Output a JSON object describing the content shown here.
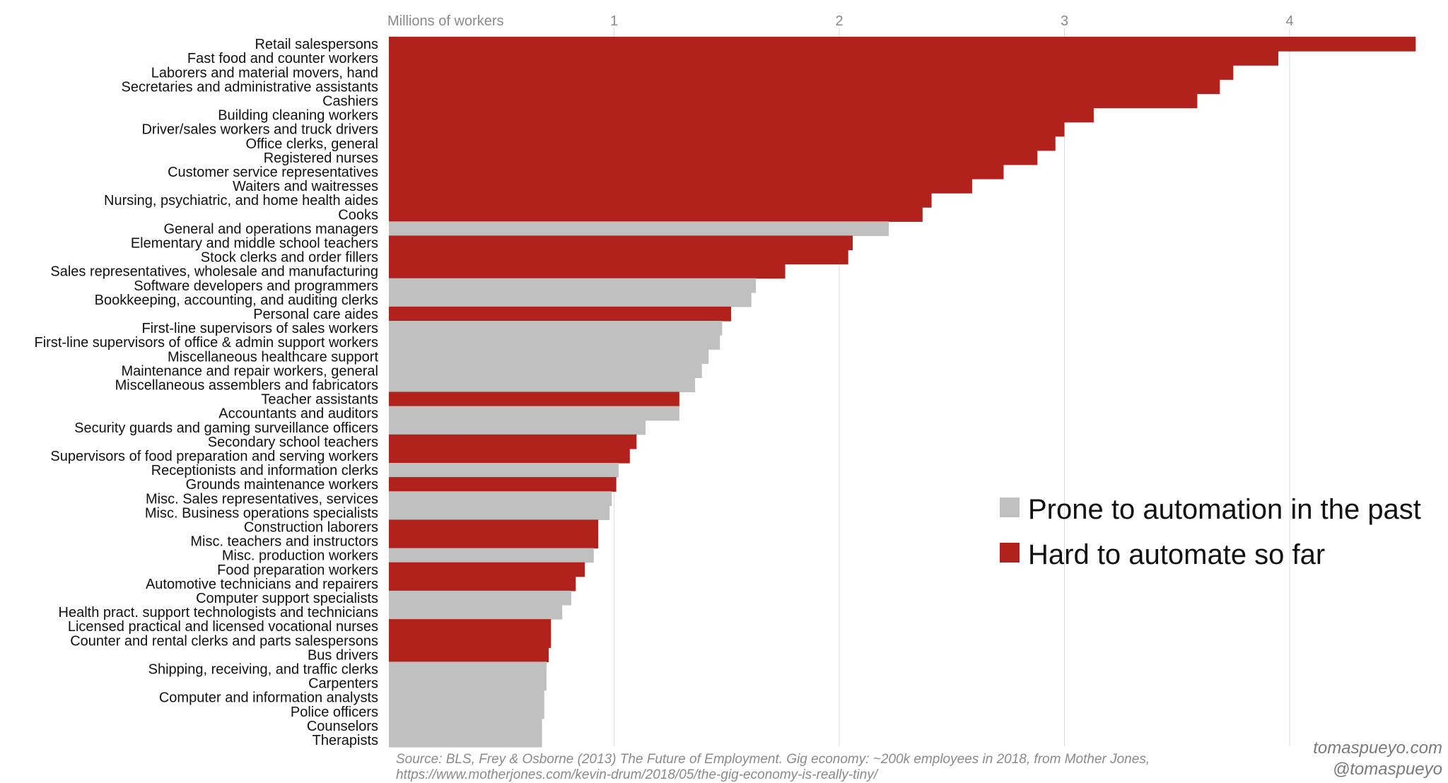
{
  "chart_data": {
    "type": "bar",
    "orientation": "horizontal",
    "xlabel": "Millions of workers",
    "xlim": [
      0,
      4.6
    ],
    "xticks": [
      1,
      2,
      3,
      4
    ],
    "grid": true,
    "legend_position": "right",
    "colors": {
      "prone": "#c0c0c0",
      "hard": "#b0221b"
    },
    "series": [
      {
        "key": "prone",
        "name": "Prone to automation in the past"
      },
      {
        "key": "hard",
        "name": "Hard to automate so far"
      }
    ],
    "bars": [
      {
        "label": "Retail salespersons",
        "value": 4.56,
        "group": "hard"
      },
      {
        "label": "Fast food and counter workers",
        "value": 3.95,
        "group": "hard"
      },
      {
        "label": "Laborers and material movers, hand",
        "value": 3.75,
        "group": "hard"
      },
      {
        "label": "Secretaries and administrative assistants",
        "value": 3.69,
        "group": "hard"
      },
      {
        "label": "Cashiers",
        "value": 3.59,
        "group": "hard"
      },
      {
        "label": "Building cleaning workers",
        "value": 3.13,
        "group": "hard"
      },
      {
        "label": "Driver/sales workers and truck drivers",
        "value": 3.0,
        "group": "hard"
      },
      {
        "label": "Office clerks, general",
        "value": 2.96,
        "group": "hard"
      },
      {
        "label": "Registered nurses",
        "value": 2.88,
        "group": "hard"
      },
      {
        "label": "Customer service representatives",
        "value": 2.73,
        "group": "hard"
      },
      {
        "label": "Waiters and waitresses",
        "value": 2.59,
        "group": "hard"
      },
      {
        "label": "Nursing, psychiatric, and home health aides",
        "value": 2.41,
        "group": "hard"
      },
      {
        "label": "Cooks",
        "value": 2.37,
        "group": "hard"
      },
      {
        "label": "General and operations managers",
        "value": 2.22,
        "group": "prone"
      },
      {
        "label": "Elementary and middle school teachers",
        "value": 2.06,
        "group": "hard"
      },
      {
        "label": "Stock clerks and order fillers",
        "value": 2.04,
        "group": "hard"
      },
      {
        "label": "Sales representatives, wholesale and manufacturing",
        "value": 1.76,
        "group": "hard"
      },
      {
        "label": "Software developers and programmers",
        "value": 1.63,
        "group": "prone"
      },
      {
        "label": "Bookkeeping, accounting, and auditing clerks",
        "value": 1.61,
        "group": "prone"
      },
      {
        "label": "Personal care aides",
        "value": 1.52,
        "group": "hard"
      },
      {
        "label": "First-line supervisors of sales workers",
        "value": 1.48,
        "group": "prone"
      },
      {
        "label": "First-line supervisors of office & admin support workers",
        "value": 1.47,
        "group": "prone"
      },
      {
        "label": "Miscellaneous healthcare support",
        "value": 1.42,
        "group": "prone"
      },
      {
        "label": "Maintenance and repair workers, general",
        "value": 1.39,
        "group": "prone"
      },
      {
        "label": "Miscellaneous assemblers and fabricators",
        "value": 1.36,
        "group": "prone"
      },
      {
        "label": "Teacher assistants",
        "value": 1.29,
        "group": "hard"
      },
      {
        "label": "Accountants and auditors",
        "value": 1.29,
        "group": "prone"
      },
      {
        "label": "Security guards and gaming surveillance officers",
        "value": 1.14,
        "group": "prone"
      },
      {
        "label": "Secondary school teachers",
        "value": 1.1,
        "group": "hard"
      },
      {
        "label": "Supervisors of food preparation and serving workers",
        "value": 1.07,
        "group": "hard"
      },
      {
        "label": "Receptionists and information clerks",
        "value": 1.02,
        "group": "prone"
      },
      {
        "label": "Grounds maintenance workers",
        "value": 1.01,
        "group": "hard"
      },
      {
        "label": "Misc. Sales representatives, services",
        "value": 0.99,
        "group": "prone"
      },
      {
        "label": "Misc. Business operations specialists",
        "value": 0.98,
        "group": "prone"
      },
      {
        "label": "Construction laborers",
        "value": 0.93,
        "group": "hard"
      },
      {
        "label": "Misc. teachers and instructors",
        "value": 0.93,
        "group": "hard"
      },
      {
        "label": "Misc. production workers",
        "value": 0.91,
        "group": "prone"
      },
      {
        "label": "Food preparation workers",
        "value": 0.87,
        "group": "hard"
      },
      {
        "label": "Automotive technicians and repairers",
        "value": 0.83,
        "group": "hard"
      },
      {
        "label": "Computer support specialists",
        "value": 0.81,
        "group": "prone"
      },
      {
        "label": "Health pract. support technologists and technicians",
        "value": 0.77,
        "group": "prone"
      },
      {
        "label": "Licensed practical and licensed vocational nurses",
        "value": 0.72,
        "group": "hard"
      },
      {
        "label": "Counter and rental clerks and parts salespersons",
        "value": 0.72,
        "group": "hard"
      },
      {
        "label": "Bus drivers",
        "value": 0.71,
        "group": "hard"
      },
      {
        "label": "Shipping, receiving, and traffic clerks",
        "value": 0.7,
        "group": "prone"
      },
      {
        "label": "Carpenters",
        "value": 0.7,
        "group": "prone"
      },
      {
        "label": "Computer and information analysts",
        "value": 0.69,
        "group": "prone"
      },
      {
        "label": "Police officers",
        "value": 0.69,
        "group": "prone"
      },
      {
        "label": "Counselors",
        "value": 0.68,
        "group": "prone"
      },
      {
        "label": "Therapists",
        "value": 0.68,
        "group": "prone"
      }
    ]
  },
  "footer": {
    "source_line1": "Source: BLS, Frey & Osborne (2013) The Future of Employment. Gig economy: ~200k employees in 2018, from Mother Jones,",
    "source_line2": "https://www.motherjones.com/kevin-drum/2018/05/the-gig-economy-is-really-tiny/",
    "credit_site": "tomaspueyo.com",
    "credit_handle": "@tomaspueyo"
  }
}
